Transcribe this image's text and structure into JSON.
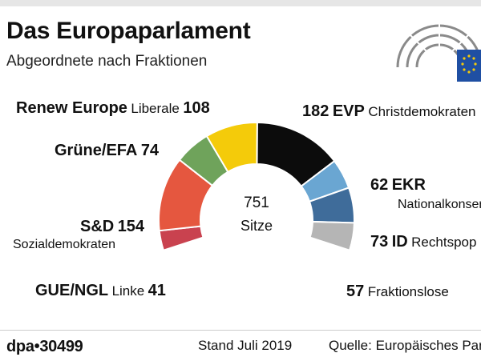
{
  "header": {
    "title": "Das Europaparlament",
    "subtitle": "Abgeordnete nach Fraktionen"
  },
  "center": {
    "total": "751",
    "label": "Sitze"
  },
  "footer": {
    "agency": "dpa•30499",
    "stand": "Stand Juli 2019",
    "quelle": "Quelle: Europäisches Parl"
  },
  "labels": {
    "renew": {
      "name": "Renew Europe",
      "desc": "Liberale",
      "value": "108"
    },
    "gruene": {
      "name": "Grüne/EFA",
      "value": "74"
    },
    "sd": {
      "name": "S&D",
      "value": "154",
      "desc": "Sozialdemokraten"
    },
    "gue": {
      "name": "GUE/NGL",
      "desc": "Linke",
      "value": "41"
    },
    "evp": {
      "value": "182",
      "name": "EVP",
      "desc": "Christdemokraten"
    },
    "ekr": {
      "value": "62",
      "name": "EKR",
      "desc": "Nationalkonser"
    },
    "id": {
      "value": "73",
      "name": "ID",
      "desc": "Rechtspop"
    },
    "fl": {
      "value": "57",
      "desc": "Fraktionslose"
    }
  },
  "chart_data": {
    "type": "pie",
    "variant": "semicircle-donut",
    "total": 751,
    "slices": [
      {
        "key": "gue",
        "name": "GUE/NGL",
        "value": 41,
        "color": "#c9424f"
      },
      {
        "key": "sd",
        "name": "S&D",
        "value": 154,
        "color": "#e5573f"
      },
      {
        "key": "gruene",
        "name": "Grüne/EFA",
        "value": 74,
        "color": "#6fa35b"
      },
      {
        "key": "renew",
        "name": "Renew Europe",
        "value": 108,
        "color": "#f4cb0a"
      },
      {
        "key": "evp",
        "name": "EVP",
        "value": 182,
        "color": "#0c0c0c"
      },
      {
        "key": "ekr",
        "name": "EKR",
        "value": 62,
        "color": "#6aa6d2"
      },
      {
        "key": "id",
        "name": "ID",
        "value": 73,
        "color": "#3f6c9a"
      },
      {
        "key": "fl",
        "name": "Fraktionslose",
        "value": 57,
        "color": "#b5b5b5"
      }
    ]
  }
}
